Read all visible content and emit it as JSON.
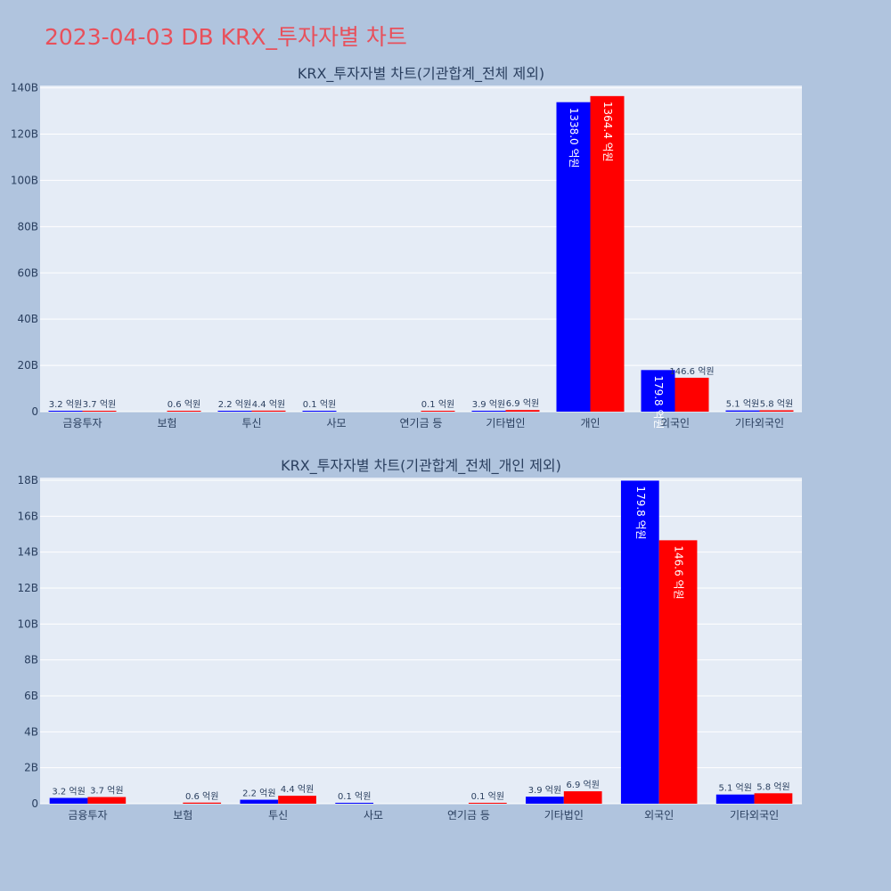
{
  "page_title": "2023-04-03 DB KRX_투자자별 차트",
  "colors": {
    "series_1": "#0000ff",
    "series_2": "#ff0000",
    "title": "#e8505b"
  },
  "chart_data": [
    {
      "type": "bar",
      "title": "KRX_투자자별 차트(기관합계_전체 제외)",
      "categories": [
        "금융투자",
        "보험",
        "투신",
        "사모",
        "연기금 등",
        "기타법인",
        "개인",
        "외국인",
        "기타외국인"
      ],
      "series": [
        {
          "values": [
            0.32,
            0,
            0.22,
            0.01,
            0,
            0.39,
            133.8,
            17.98,
            0.51
          ],
          "labels": [
            "3.2 억원",
            "",
            "2.2 억원",
            "0.1 억원",
            "",
            "3.9 억원",
            "1338.0 억원",
            "179.8 억원",
            "5.1 억원"
          ]
        },
        {
          "values": [
            0.37,
            0.06,
            0.44,
            0,
            0.01,
            0.69,
            136.44,
            14.66,
            0.58
          ],
          "labels": [
            "3.7 억원",
            "0.6 억원",
            "4.4 억원",
            "",
            "0.1 억원",
            "6.9 억원",
            "1364.4 억원",
            "146.6 억원",
            "5.8 억원"
          ]
        }
      ],
      "y_ticks": [
        "0",
        "20B",
        "40B",
        "60B",
        "80B",
        "100B",
        "120B",
        "140B"
      ],
      "ylim": [
        0,
        141
      ],
      "grid": true
    },
    {
      "type": "bar",
      "title": "KRX_투자자별 차트(기관합계_전체_개인 제외)",
      "categories": [
        "금융투자",
        "보험",
        "투신",
        "사모",
        "연기금 등",
        "기타법인",
        "외국인",
        "기타외국인"
      ],
      "series": [
        {
          "values": [
            0.32,
            0,
            0.22,
            0.01,
            0,
            0.39,
            17.98,
            0.51
          ],
          "labels": [
            "3.2 억원",
            "",
            "2.2 억원",
            "0.1 억원",
            "",
            "3.9 억원",
            "179.8 억원",
            "5.1 억원"
          ]
        },
        {
          "values": [
            0.37,
            0.06,
            0.44,
            0,
            0.01,
            0.69,
            14.66,
            0.58
          ],
          "labels": [
            "3.7 억원",
            "0.6 억원",
            "4.4 억원",
            "",
            "0.1 억원",
            "6.9 억원",
            "146.6 억원",
            "5.8 억원"
          ]
        }
      ],
      "y_ticks": [
        "0",
        "2B",
        "4B",
        "6B",
        "8B",
        "10B",
        "12B",
        "14B",
        "16B",
        "18B"
      ],
      "ylim": [
        0,
        18.15
      ],
      "grid": true
    }
  ]
}
